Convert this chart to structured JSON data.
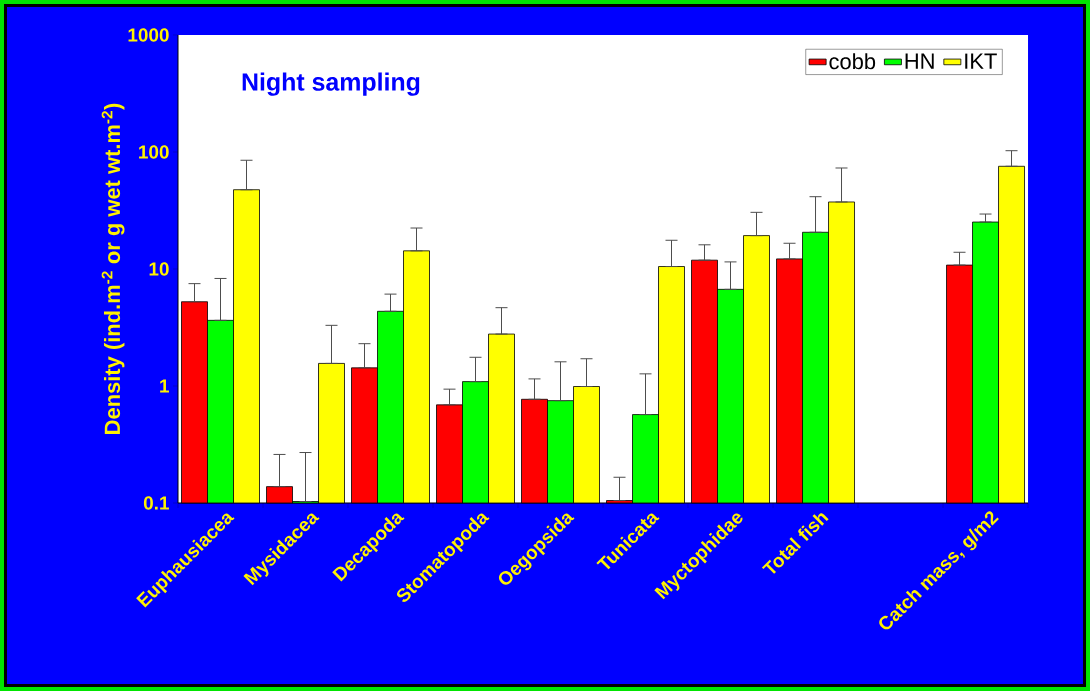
{
  "chart_data": {
    "type": "bar",
    "title": "Night sampling",
    "ylabel": "Density (ind.m$^{-2}$ or g wet wt.m$^{-2}$)",
    "categories": [
      "Euphausiacea",
      "Mysidacea",
      "Decapoda",
      "Stomatopoda",
      "Oegopsida",
      "Tunicata",
      "Myctophidae",
      "Total fish",
      null,
      "Catch mass, g/m2"
    ],
    "series": [
      {
        "name": "cobb",
        "color": "#ff0000",
        "values": [
          5.25,
          0.138,
          1.43,
          0.69,
          0.77,
          0.105,
          11.9,
          12.2,
          null,
          10.8
        ],
        "errors": [
          [
            5.25,
            7.5
          ],
          [
            0.138,
            0.26
          ],
          [
            1.43,
            2.3
          ],
          [
            0.69,
            0.94
          ],
          [
            0.77,
            1.15
          ],
          [
            0.105,
            0.166
          ],
          [
            11.9,
            16.1
          ],
          [
            12.2,
            16.6
          ],
          null,
          [
            10.8,
            13.9
          ]
        ]
      },
      {
        "name": "HN",
        "color": "#00ff00",
        "values": [
          3.64,
          0.103,
          4.35,
          1.09,
          0.75,
          0.57,
          6.7,
          20.6,
          null,
          25.2
        ],
        "errors": [
          [
            3.64,
            8.3
          ],
          [
            0.103,
            0.27
          ],
          [
            4.35,
            6.1
          ],
          [
            1.09,
            1.76
          ],
          [
            0.75,
            1.61
          ],
          [
            0.57,
            1.27
          ],
          [
            6.7,
            11.5
          ],
          [
            20.6,
            41.5
          ],
          null,
          [
            25.2,
            29.5
          ]
        ]
      },
      {
        "name": "IKT",
        "color": "#ffff00",
        "values": [
          47.6,
          1.56,
          14.3,
          2.78,
          0.99,
          10.5,
          19.3,
          37.4,
          null,
          75.5
        ],
        "errors": [
          [
            47.6,
            85
          ],
          [
            1.56,
            3.3
          ],
          [
            14.3,
            22.4
          ],
          [
            2.78,
            4.67
          ],
          [
            0.99,
            1.71
          ],
          [
            10.5,
            17.6
          ],
          [
            19.3,
            30.5
          ],
          [
            37.4,
            73
          ],
          null,
          [
            75.5,
            102.6
          ]
        ]
      }
    ],
    "log": "y",
    "ylim": [
      0.1,
      1000
    ],
    "yticks": [
      0.1,
      1,
      10,
      100,
      1000
    ],
    "grid": false,
    "legend": "top right"
  }
}
